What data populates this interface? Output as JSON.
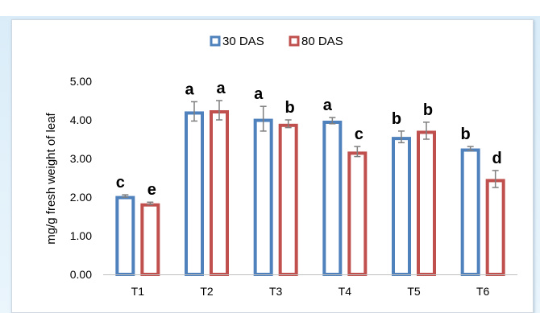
{
  "chart_data": {
    "type": "bar",
    "categories": [
      "T1",
      "T2",
      "T3",
      "T4",
      "T5",
      "T6"
    ],
    "series": [
      {
        "name": "30 DAS",
        "color": "#4f81bd",
        "values": [
          2.03,
          4.22,
          4.03,
          3.98,
          3.56,
          3.26
        ],
        "errors": [
          0.03,
          0.25,
          0.32,
          0.08,
          0.15,
          0.05
        ],
        "letters": [
          "c",
          "a",
          "a",
          "a",
          "b",
          "b"
        ]
      },
      {
        "name": "80 DAS",
        "color": "#c0504d",
        "values": [
          1.84,
          4.25,
          3.9,
          3.18,
          3.72,
          2.47
        ],
        "errors": [
          0.03,
          0.25,
          0.1,
          0.13,
          0.22,
          0.22
        ],
        "letters": [
          "e",
          "a",
          "b",
          "c",
          "b",
          "d"
        ]
      }
    ],
    "ylabel": "mg/g fresh weight of leaf",
    "xlabel": "",
    "ylim": [
      0,
      5
    ],
    "yticks": [
      "0.00",
      "1.00",
      "2.00",
      "3.00",
      "4.00",
      "5.00"
    ],
    "legend_position": "top-center",
    "grid": false
  }
}
